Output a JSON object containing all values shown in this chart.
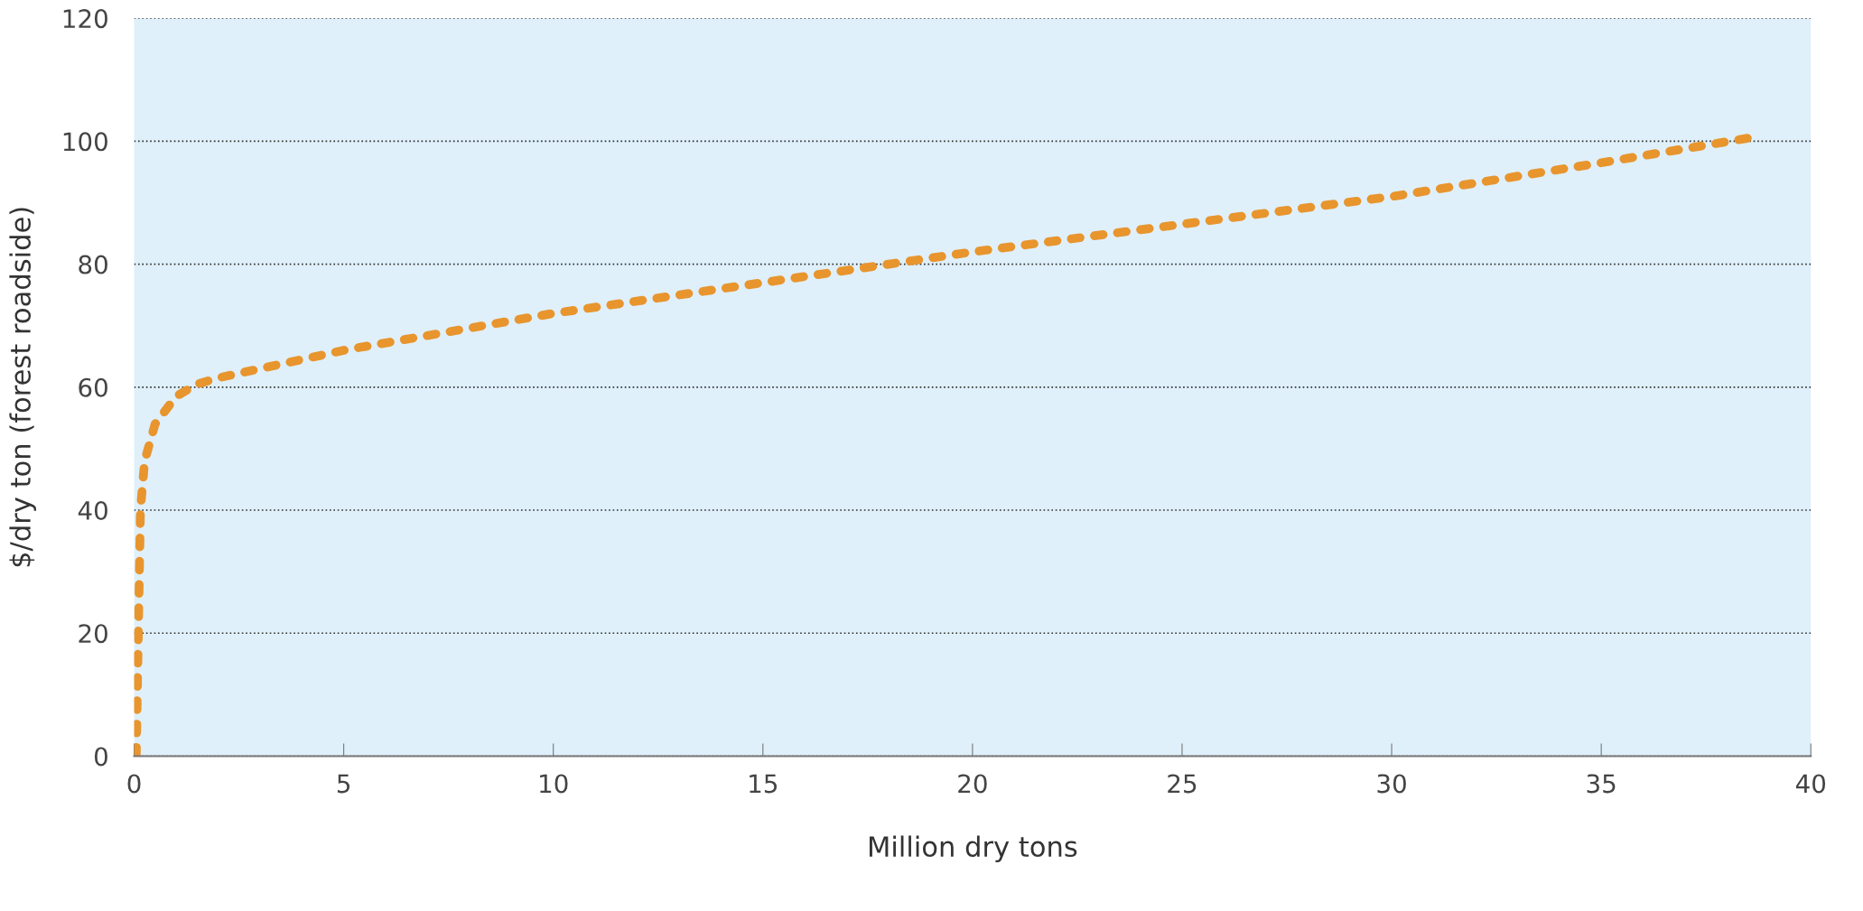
{
  "chart_data": {
    "type": "line",
    "xlabel": "Million dry tons",
    "ylabel": "$/dry ton (forest roadside)",
    "series": [
      {
        "color": "#e8952e",
        "x": [
          0.05,
          0.1,
          0.15,
          0.25,
          0.5,
          1,
          1.5,
          2,
          3,
          5,
          7.5,
          10,
          15,
          20,
          25,
          30,
          35,
          38.5
        ],
        "values": [
          0,
          20,
          40,
          48,
          54,
          58.5,
          60.5,
          61.5,
          63,
          66,
          69,
          72,
          77,
          82,
          86.5,
          91,
          96.5,
          100.5
        ]
      }
    ],
    "xlim": [
      0,
      40
    ],
    "xticks": [
      0,
      5,
      10,
      15,
      20,
      25,
      30,
      35,
      40
    ],
    "ylim": [
      0,
      120
    ],
    "yticks": [
      0,
      20,
      40,
      60,
      80,
      100,
      120
    ],
    "grid": "y",
    "line_style": "dotted",
    "marker": "none",
    "legend": false
  }
}
